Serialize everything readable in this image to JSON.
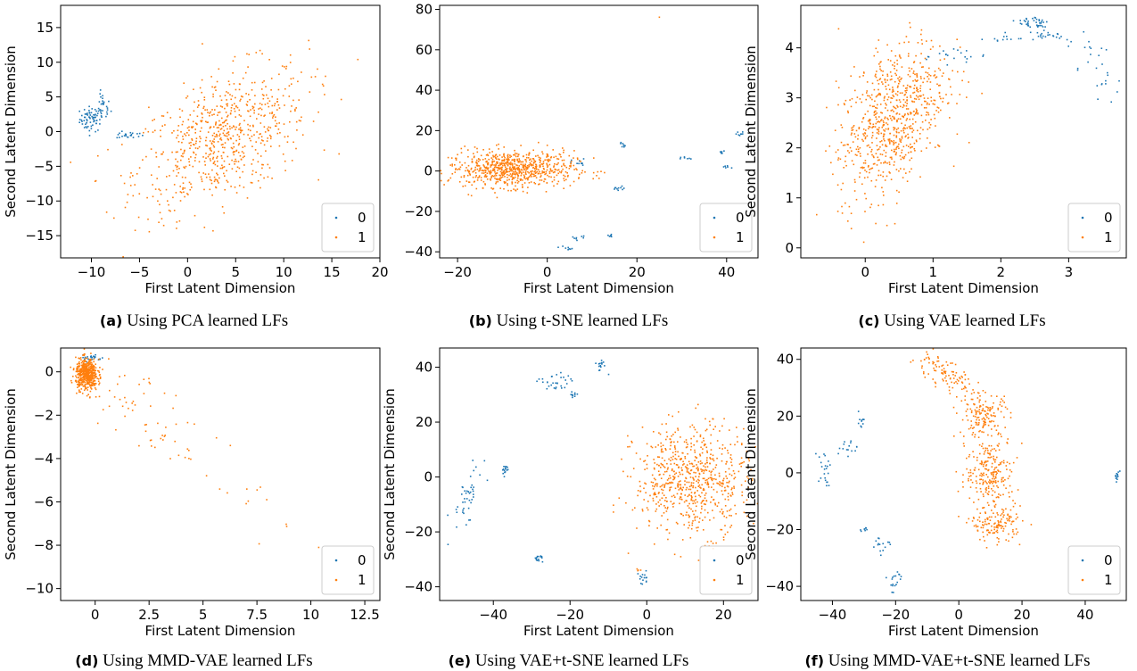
{
  "colors": {
    "class0": "#1f77b4",
    "class1": "#ff7f0e"
  },
  "panels": [
    {
      "caption_tag": "(a)",
      "caption_text": "Using PCA learned LFs",
      "chart_data": {
        "type": "scatter",
        "xlabel": "First Latent Dimension",
        "ylabel": "Second Latent Dimension",
        "xlim": [
          -13.2,
          20.0
        ],
        "ylim": [
          -18.2,
          18.2
        ],
        "xticks": [
          -10,
          -5,
          0,
          5,
          10,
          15,
          20
        ],
        "yticks": [
          -15,
          -10,
          -5,
          0,
          5,
          10,
          15
        ],
        "legend": {
          "position": "bottom-right",
          "entries": [
            "0",
            "1"
          ]
        },
        "series": [
          {
            "name": "0",
            "clusters": [
              {
                "cx": -10.0,
                "cy": 1.8,
                "sx": 0.6,
                "sy": 0.9,
                "n": 70
              },
              {
                "cx": -8.8,
                "cy": 3.5,
                "sx": 0.4,
                "sy": 1.0,
                "n": 25
              },
              {
                "cx": -6.0,
                "cy": -0.5,
                "sx": 0.7,
                "sy": 0.25,
                "n": 22
              }
            ]
          },
          {
            "name": "1",
            "clusters": [
              {
                "cx": 3.5,
                "cy": -1.0,
                "sx": 4.5,
                "sy": 4.5,
                "n": 700,
                "slope": 0.55
              }
            ]
          }
        ]
      }
    },
    {
      "caption_tag": "(b)",
      "caption_text": "Using t-SNE learned LFs",
      "chart_data": {
        "type": "scatter",
        "xlabel": "First Latent Dimension",
        "ylabel": "",
        "xlim": [
          -24.0,
          47.0
        ],
        "ylim": [
          -43.0,
          82.0
        ],
        "xticks": [
          -20,
          0,
          20,
          40
        ],
        "yticks": [
          -40,
          -20,
          0,
          20,
          40,
          60,
          80
        ],
        "legend": {
          "position": "bottom-right",
          "entries": [
            "0",
            "1"
          ]
        },
        "series": [
          {
            "name": "0",
            "clusters": [
              {
                "cx": 4,
                "cy": -38,
                "sx": 0.8,
                "sy": 0.6,
                "n": 8
              },
              {
                "cx": 7,
                "cy": -33,
                "sx": 0.8,
                "sy": 0.6,
                "n": 8
              },
              {
                "cx": 7,
                "cy": 4,
                "sx": 0.8,
                "sy": 1.0,
                "n": 10
              },
              {
                "cx": 14,
                "cy": -32,
                "sx": 0.6,
                "sy": 0.6,
                "n": 8
              },
              {
                "cx": 16,
                "cy": -9,
                "sx": 0.8,
                "sy": 0.7,
                "n": 10
              },
              {
                "cx": 17,
                "cy": 13,
                "sx": 0.6,
                "sy": 0.7,
                "n": 8
              },
              {
                "cx": 31,
                "cy": 6,
                "sx": 0.6,
                "sy": 0.5,
                "n": 7
              },
              {
                "cx": 39,
                "cy": 9,
                "sx": 0.5,
                "sy": 0.5,
                "n": 6
              },
              {
                "cx": 40,
                "cy": 2,
                "sx": 0.5,
                "sy": 0.5,
                "n": 6
              },
              {
                "cx": 43,
                "cy": 18,
                "sx": 0.6,
                "sy": 0.8,
                "n": 8
              }
            ]
          },
          {
            "name": "1",
            "clusters": [
              {
                "cx": -8,
                "cy": 1,
                "sx": 7,
                "sy": 4.5,
                "n": 750
              },
              {
                "cx": 25,
                "cy": 76,
                "sx": 0.2,
                "sy": 0.2,
                "n": 1
              }
            ]
          }
        ]
      }
    },
    {
      "caption_tag": "(c)",
      "caption_text": "Using VAE learned LFs",
      "chart_data": {
        "type": "scatter",
        "xlabel": "First Latent Dimension",
        "ylabel": "Second Latent Dimension",
        "xlim": [
          -0.95,
          3.85
        ],
        "ylim": [
          -0.2,
          4.85
        ],
        "xticks": [
          0,
          1,
          2,
          3
        ],
        "yticks": [
          0,
          1,
          2,
          3,
          4
        ],
        "legend": {
          "position": "bottom-right",
          "entries": [
            "0",
            "1"
          ]
        },
        "series": [
          {
            "name": "0",
            "clusters": [
              {
                "cx": 1.3,
                "cy": 3.85,
                "sx": 0.25,
                "sy": 0.08,
                "n": 20
              },
              {
                "cx": 2.0,
                "cy": 4.2,
                "sx": 0.15,
                "sy": 0.05,
                "n": 12
              },
              {
                "cx": 2.5,
                "cy": 4.5,
                "sx": 0.12,
                "sy": 0.08,
                "n": 40
              },
              {
                "cx": 2.7,
                "cy": 4.25,
                "sx": 0.2,
                "sy": 0.05,
                "n": 20
              },
              {
                "cx": 3.3,
                "cy": 3.9,
                "sx": 0.15,
                "sy": 0.25,
                "n": 15
              },
              {
                "cx": 3.6,
                "cy": 3.3,
                "sx": 0.1,
                "sy": 0.15,
                "n": 12
              }
            ]
          },
          {
            "name": "1",
            "clusters": [
              {
                "cx": 0.4,
                "cy": 2.6,
                "sx": 0.4,
                "sy": 0.7,
                "n": 750,
                "slope": 0.9
              }
            ]
          }
        ]
      }
    },
    {
      "caption_tag": "(d)",
      "caption_text": "Using MMD-VAE learned LFs",
      "chart_data": {
        "type": "scatter",
        "xlabel": "First Latent Dimension",
        "ylabel": "Second Latent Dimension",
        "xlim": [
          -1.6,
          13.2
        ],
        "ylim": [
          -10.55,
          1.1
        ],
        "xticks": [
          0.0,
          2.5,
          5.0,
          7.5,
          10.0,
          12.5
        ],
        "yticks": [
          -10,
          -8,
          -6,
          -4,
          -2,
          0
        ],
        "legend": {
          "position": "bottom-right",
          "entries": [
            "0",
            "1"
          ]
        },
        "series": [
          {
            "name": "0",
            "clusters": [
              {
                "cx": -0.2,
                "cy": 0.65,
                "sx": 0.25,
                "sy": 0.1,
                "n": 25
              }
            ]
          },
          {
            "name": "1",
            "clusters": [
              {
                "cx": -0.4,
                "cy": -0.1,
                "sx": 0.25,
                "sy": 0.35,
                "n": 500
              },
              {
                "cx": 2.5,
                "cy": -2.2,
                "sx": 1.6,
                "sy": 0.9,
                "n": 70,
                "slope": -0.82
              },
              {
                "cx": 7.5,
                "cy": -6.0,
                "sx": 0.6,
                "sy": 0.4,
                "n": 6
              },
              {
                "cx": 8.8,
                "cy": -7.0,
                "sx": 0.1,
                "sy": 0.1,
                "n": 2
              },
              {
                "cx": 10.5,
                "cy": -8.0,
                "sx": 0.1,
                "sy": 0.1,
                "n": 1
              }
            ]
          }
        ]
      }
    },
    {
      "caption_tag": "(e)",
      "caption_text": "Using VAE+t-SNE learned LFs",
      "chart_data": {
        "type": "scatter",
        "xlabel": "First Latent Dimension",
        "ylabel": "Second Latent Dimension",
        "xlim": [
          -54.0,
          29.0
        ],
        "ylim": [
          -45.0,
          47.0
        ],
        "xticks": [
          -40,
          -20,
          0,
          20
        ],
        "yticks": [
          -40,
          -20,
          0,
          20,
          40
        ],
        "legend": {
          "position": "bottom-right",
          "entries": [
            "0",
            "1"
          ]
        },
        "series": [
          {
            "name": "0",
            "clusters": [
              {
                "cx": -47,
                "cy": -8,
                "sx": 2.0,
                "sy": 4.0,
                "n": 45,
                "slope": 1.8
              },
              {
                "cx": -37,
                "cy": 3,
                "sx": 0.6,
                "sy": 1.2,
                "n": 15
              },
              {
                "cx": -28,
                "cy": -30,
                "sx": 0.8,
                "sy": 0.8,
                "n": 15
              },
              {
                "cx": -24,
                "cy": 34,
                "sx": 2.0,
                "sy": 2.0,
                "n": 30
              },
              {
                "cx": -19,
                "cy": 30,
                "sx": 0.8,
                "sy": 0.6,
                "n": 10
              },
              {
                "cx": -12,
                "cy": 41,
                "sx": 0.8,
                "sy": 1.2,
                "n": 15
              },
              {
                "cx": -1,
                "cy": -37,
                "sx": 0.8,
                "sy": 1.2,
                "n": 15
              }
            ]
          },
          {
            "name": "1",
            "clusters": [
              {
                "cx": 12,
                "cy": -1,
                "sx": 7.5,
                "sy": 10,
                "n": 700
              },
              {
                "cx": -2,
                "cy": -34,
                "sx": 0.5,
                "sy": 0.5,
                "n": 4
              }
            ]
          }
        ]
      }
    },
    {
      "caption_tag": "(f)",
      "caption_text": "Using MMD-VAE+t-SNE learned LFs",
      "chart_data": {
        "type": "scatter",
        "xlabel": "First Latent Dimension",
        "ylabel": "Second Latent Dimension",
        "xlim": [
          -50.0,
          53.0
        ],
        "ylim": [
          -45.0,
          44.0
        ],
        "xticks": [
          -40,
          -20,
          0,
          20,
          40
        ],
        "yticks": [
          -40,
          -20,
          0,
          20,
          40
        ],
        "legend": {
          "position": "bottom-right",
          "entries": [
            "0",
            "1"
          ]
        },
        "series": [
          {
            "name": "0",
            "clusters": [
              {
                "cx": -43,
                "cy": 2,
                "sx": 1.2,
                "sy": 3.0,
                "n": 22
              },
              {
                "cx": -35,
                "cy": 9,
                "sx": 1.5,
                "sy": 2.0,
                "n": 15
              },
              {
                "cx": -31,
                "cy": 18,
                "sx": 0.6,
                "sy": 1.2,
                "n": 10
              },
              {
                "cx": -30,
                "cy": -20,
                "sx": 0.8,
                "sy": 0.5,
                "n": 8
              },
              {
                "cx": -25,
                "cy": -26,
                "sx": 1.5,
                "sy": 2.0,
                "n": 15
              },
              {
                "cx": -20,
                "cy": -38,
                "sx": 1.5,
                "sy": 2.0,
                "n": 18
              },
              {
                "cx": 50,
                "cy": -1,
                "sx": 0.4,
                "sy": 1.2,
                "n": 12
              }
            ]
          },
          {
            "name": "1",
            "clusters": [
              {
                "cx": -5,
                "cy": 35,
                "sx": 5.5,
                "sy": 2.5,
                "n": 110,
                "slope": -0.55
              },
              {
                "cx": 8,
                "cy": 20,
                "sx": 4.0,
                "sy": 4.0,
                "n": 150
              },
              {
                "cx": 10,
                "cy": 0,
                "sx": 4.0,
                "sy": 6.0,
                "n": 220
              },
              {
                "cx": 12,
                "cy": -18,
                "sx": 4.0,
                "sy": 3.0,
                "n": 140
              }
            ]
          }
        ]
      }
    }
  ]
}
